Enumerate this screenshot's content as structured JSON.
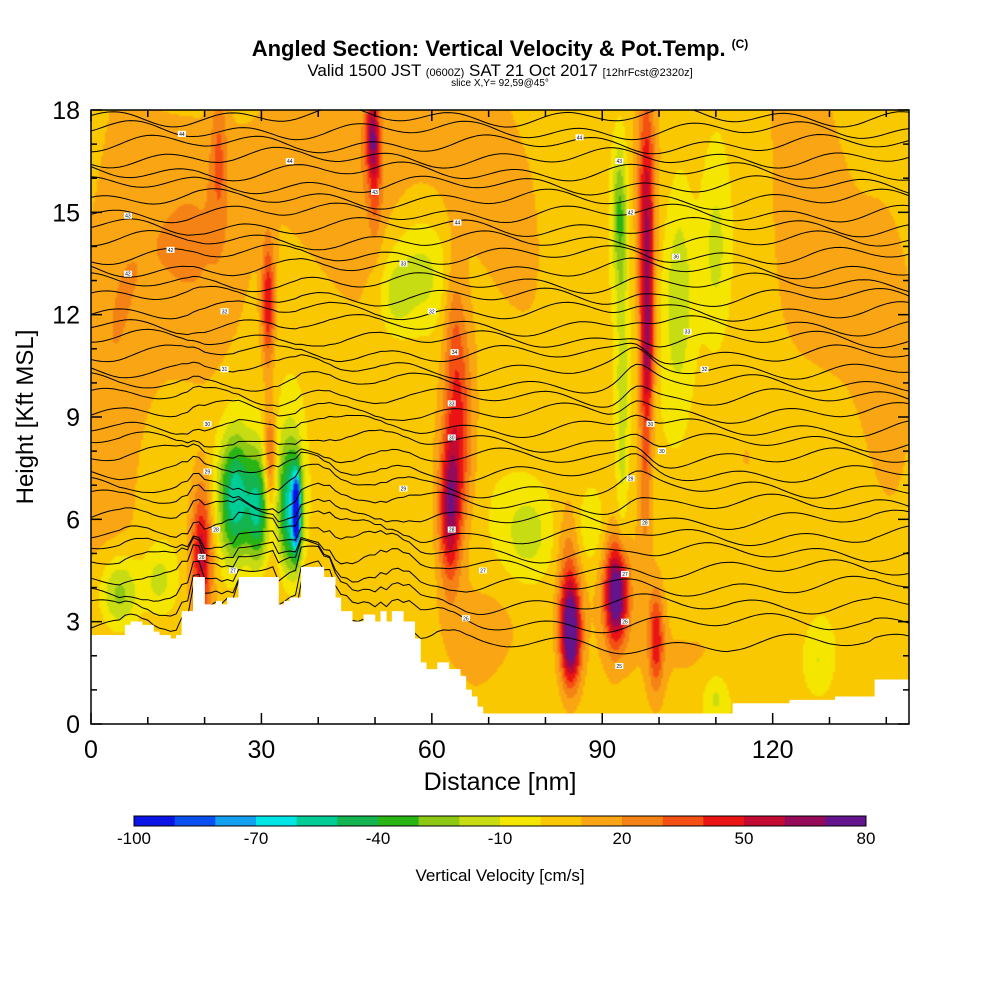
{
  "titles": {
    "main": "Angled Section: Vertical Velocity & Pot.Temp.",
    "mark": "(C)",
    "valid_prefix": "Valid 1500 JST",
    "valid_zulu": "(0600Z)",
    "valid_date": "SAT 21 Oct 2017",
    "forecast": "[12hrFcst@2320z]",
    "slice": "slice X,Y= 92,59@45°"
  },
  "chart_data": {
    "type": "heatmap",
    "title": "Angled Section: Vertical Velocity & Pot.Temp.",
    "xlabel": "Distance [nm]",
    "ylabel": "Height [Kft MSL]",
    "xlim": [
      0,
      144
    ],
    "ylim": [
      0,
      18
    ],
    "x_ticks": [
      0,
      30,
      60,
      90,
      120
    ],
    "y_ticks": [
      0,
      3,
      6,
      9,
      12,
      15,
      18
    ],
    "colorbar": {
      "label": "Vertical Velocity [cm/s]",
      "tick_labels": [
        "-100",
        "-70",
        "-40",
        "-10",
        "20",
        "50",
        "80"
      ],
      "tick_values": [
        -100,
        -70,
        -40,
        -10,
        20,
        50,
        80
      ],
      "bins": [
        -100,
        -90,
        -80,
        -70,
        -60,
        -50,
        -40,
        -30,
        -20,
        -10,
        0,
        10,
        20,
        30,
        40,
        50,
        60,
        70,
        80
      ],
      "colors": [
        "#0a14e6",
        "#0a50f0",
        "#14a0f0",
        "#00e6e6",
        "#00cc96",
        "#14b450",
        "#28b414",
        "#8cc814",
        "#c8dc14",
        "#f5e600",
        "#fac800",
        "#faa514",
        "#f58214",
        "#f55014",
        "#eb1414",
        "#c30a32",
        "#960a5a",
        "#64148c"
      ]
    },
    "background_value": 5,
    "cells": [
      {
        "x": 19.5,
        "y": 5.0,
        "sx": 1.3,
        "sy": 1.4,
        "v": 55
      },
      {
        "x": 25.5,
        "y": 6.6,
        "sx": 2.2,
        "sy": 1.4,
        "v": -62
      },
      {
        "x": 29.5,
        "y": 6.2,
        "sx": 1.3,
        "sy": 1.3,
        "v": -45
      },
      {
        "x": 35.0,
        "y": 6.3,
        "sx": 1.6,
        "sy": 1.5,
        "v": -60
      },
      {
        "x": 36.2,
        "y": 6.2,
        "sx": 0.5,
        "sy": 0.8,
        "v": -82
      },
      {
        "x": 31.2,
        "y": 12.3,
        "sx": 0.8,
        "sy": 1.3,
        "v": 48
      },
      {
        "x": 31.5,
        "y": 7.8,
        "sx": 0.7,
        "sy": 1.0,
        "v": 38
      },
      {
        "x": 22.5,
        "y": 16.8,
        "sx": 1.0,
        "sy": 1.5,
        "v": 25
      },
      {
        "x": 63.2,
        "y": 6.3,
        "sx": 1.3,
        "sy": 1.5,
        "v": 62
      },
      {
        "x": 65.0,
        "y": 8.5,
        "sx": 1.8,
        "sy": 2.0,
        "v": 36
      },
      {
        "x": 64.0,
        "y": 11.5,
        "sx": 1.4,
        "sy": 1.8,
        "v": 25
      },
      {
        "x": 49.5,
        "y": 17.3,
        "sx": 0.8,
        "sy": 0.8,
        "v": 50
      },
      {
        "x": 50.0,
        "y": 16.0,
        "sx": 0.8,
        "sy": 1.2,
        "v": 28
      },
      {
        "x": 84.5,
        "y": 2.6,
        "sx": 1.2,
        "sy": 1.0,
        "v": 82
      },
      {
        "x": 84.0,
        "y": 4.0,
        "sx": 1.3,
        "sy": 1.5,
        "v": 28
      },
      {
        "x": 92.5,
        "y": 3.8,
        "sx": 1.4,
        "sy": 1.0,
        "v": 85
      },
      {
        "x": 97.8,
        "y": 14.3,
        "sx": 1.0,
        "sy": 2.8,
        "v": 58
      },
      {
        "x": 98.0,
        "y": 11.0,
        "sx": 0.8,
        "sy": 1.6,
        "v": 40
      },
      {
        "x": 97.5,
        "y": 7.5,
        "sx": 0.9,
        "sy": 2.0,
        "v": 28
      },
      {
        "x": 99.5,
        "y": 2.5,
        "sx": 0.9,
        "sy": 1.0,
        "v": 45
      },
      {
        "x": 93.5,
        "y": 9.5,
        "sx": 0.7,
        "sy": 3.5,
        "v": -14
      },
      {
        "x": 93.0,
        "y": 15.0,
        "sx": 1.0,
        "sy": 1.5,
        "v": -30
      },
      {
        "x": 103.5,
        "y": 12.8,
        "sx": 2.0,
        "sy": 2.5,
        "v": -18
      },
      {
        "x": 110.0,
        "y": 14.0,
        "sx": 2.0,
        "sy": 2.2,
        "v": -14
      },
      {
        "x": 58.0,
        "y": 13.2,
        "sx": 4.0,
        "sy": 1.2,
        "v": -14
      },
      {
        "x": 53.5,
        "y": 12.5,
        "sx": 2.0,
        "sy": 0.8,
        "v": -11
      },
      {
        "x": 77.0,
        "y": 5.6,
        "sx": 3.0,
        "sy": 0.9,
        "v": -13
      },
      {
        "x": 88.0,
        "y": 5.8,
        "sx": 1.6,
        "sy": 0.8,
        "v": -12
      },
      {
        "x": 5.0,
        "y": 3.8,
        "sx": 2.5,
        "sy": 0.8,
        "v": -30
      },
      {
        "x": 12.0,
        "y": 4.2,
        "sx": 2.0,
        "sy": 0.7,
        "v": -14
      },
      {
        "x": 128.0,
        "y": 1.8,
        "sx": 2.0,
        "sy": 0.8,
        "v": -11
      },
      {
        "x": 110.0,
        "y": 0.8,
        "sx": 1.5,
        "sy": 0.5,
        "v": -11
      },
      {
        "x": 4.0,
        "y": 10.3,
        "sx": 5.0,
        "sy": 5.0,
        "v": 20
      },
      {
        "x": 20.0,
        "y": 14.5,
        "sx": 8.0,
        "sy": 3.0,
        "v": 18
      },
      {
        "x": 48.0,
        "y": 16.0,
        "sx": 8.0,
        "sy": 2.5,
        "v": 18
      },
      {
        "x": 68.0,
        "y": 16.5,
        "sx": 8.0,
        "sy": 2.0,
        "v": 16
      },
      {
        "x": 125.0,
        "y": 14.0,
        "sx": 8.0,
        "sy": 3.0,
        "v": 16
      },
      {
        "x": 140.0,
        "y": 10.5,
        "sx": 3.0,
        "sy": 4.0,
        "v": 14
      },
      {
        "x": 70.0,
        "y": 3.0,
        "sx": 5.0,
        "sy": 1.0,
        "v": 14
      },
      {
        "x": 108.0,
        "y": 2.0,
        "sx": 7.0,
        "sy": 1.0,
        "v": 14
      },
      {
        "x": 32.0,
        "y": 3.8,
        "sx": 5.0,
        "sy": 1.0,
        "v": 14
      }
    ],
    "terrain": [
      [
        0,
        2.6
      ],
      [
        6,
        2.6
      ],
      [
        6,
        2.9
      ],
      [
        7,
        2.9
      ],
      [
        7,
        3.0
      ],
      [
        9,
        3.0
      ],
      [
        9,
        2.9
      ],
      [
        11,
        2.9
      ],
      [
        11,
        2.7
      ],
      [
        12,
        2.7
      ],
      [
        12,
        2.6
      ],
      [
        13,
        2.6
      ],
      [
        13,
        2.6
      ],
      [
        14,
        2.6
      ],
      [
        14,
        2.5
      ],
      [
        15,
        2.5
      ],
      [
        15,
        2.6
      ],
      [
        16,
        2.6
      ],
      [
        16,
        3.3
      ],
      [
        18,
        3.3
      ],
      [
        18,
        4.3
      ],
      [
        20,
        4.3
      ],
      [
        20,
        3.5
      ],
      [
        22,
        3.5
      ],
      [
        22,
        3.6
      ],
      [
        23,
        3.6
      ],
      [
        23,
        3.5
      ],
      [
        24,
        3.5
      ],
      [
        24,
        3.7
      ],
      [
        26,
        3.7
      ],
      [
        26,
        4.3
      ],
      [
        33,
        4.3
      ],
      [
        33,
        3.5
      ],
      [
        34,
        3.5
      ],
      [
        34,
        3.6
      ],
      [
        35,
        3.6
      ],
      [
        35,
        3.7
      ],
      [
        37,
        3.7
      ],
      [
        37,
        4.6
      ],
      [
        41,
        4.6
      ],
      [
        41,
        4.3
      ],
      [
        43,
        4.3
      ],
      [
        43,
        3.7
      ],
      [
        44,
        3.7
      ],
      [
        44,
        3.3
      ],
      [
        46,
        3.3
      ],
      [
        46,
        3.0
      ],
      [
        48,
        3.0
      ],
      [
        48,
        3.2
      ],
      [
        50,
        3.2
      ],
      [
        50,
        3.0
      ],
      [
        51,
        3.0
      ],
      [
        51,
        3.3
      ],
      [
        52,
        3.3
      ],
      [
        52,
        3.0
      ],
      [
        53,
        3.0
      ],
      [
        53,
        3.3
      ],
      [
        55,
        3.3
      ],
      [
        55,
        3.0
      ],
      [
        57,
        3.0
      ],
      [
        57,
        2.5
      ],
      [
        58,
        2.5
      ],
      [
        58,
        1.8
      ],
      [
        59,
        1.8
      ],
      [
        59,
        1.6
      ],
      [
        61,
        1.6
      ],
      [
        61,
        1.8
      ],
      [
        63,
        1.8
      ],
      [
        63,
        1.6
      ],
      [
        65,
        1.6
      ],
      [
        65,
        1.4
      ],
      [
        66,
        1.4
      ],
      [
        66,
        1.0
      ],
      [
        67,
        1.0
      ],
      [
        67,
        0.8
      ],
      [
        68,
        0.8
      ],
      [
        68,
        0.5
      ],
      [
        69,
        0.5
      ],
      [
        69,
        0.3
      ],
      [
        113,
        0.3
      ],
      [
        113,
        0.6
      ],
      [
        123,
        0.6
      ],
      [
        123,
        0.7
      ],
      [
        131,
        0.7
      ],
      [
        131,
        0.8
      ],
      [
        138,
        0.8
      ],
      [
        138,
        1.3
      ],
      [
        144,
        1.3
      ],
      [
        144,
        0
      ]
    ],
    "isentropes": {
      "count": 36,
      "bottom_kft": 2.6,
      "top_kft": 17.8,
      "labels": [
        {
          "x": 16,
          "y": 17.3,
          "text": "44"
        },
        {
          "x": 35,
          "y": 16.5,
          "text": "44"
        },
        {
          "x": 50,
          "y": 15.6,
          "text": "43"
        },
        {
          "x": 86,
          "y": 17.2,
          "text": "44"
        },
        {
          "x": 6.5,
          "y": 14.9,
          "text": "43"
        },
        {
          "x": 14,
          "y": 13.9,
          "text": "42"
        },
        {
          "x": 6.5,
          "y": 13.2,
          "text": "42"
        },
        {
          "x": 23.5,
          "y": 12.1,
          "text": "32"
        },
        {
          "x": 23.5,
          "y": 10.4,
          "text": "31"
        },
        {
          "x": 20.5,
          "y": 8.8,
          "text": "30"
        },
        {
          "x": 20.5,
          "y": 7.4,
          "text": "29"
        },
        {
          "x": 22,
          "y": 5.7,
          "text": "28"
        },
        {
          "x": 19.5,
          "y": 4.9,
          "text": "28"
        },
        {
          "x": 25,
          "y": 4.5,
          "text": "27"
        },
        {
          "x": 55,
          "y": 13.5,
          "text": "33"
        },
        {
          "x": 60,
          "y": 12.1,
          "text": "32"
        },
        {
          "x": 64,
          "y": 10.9,
          "text": "34"
        },
        {
          "x": 63.5,
          "y": 9.4,
          "text": "33"
        },
        {
          "x": 63.5,
          "y": 8.4,
          "text": "30"
        },
        {
          "x": 55,
          "y": 6.9,
          "text": "29"
        },
        {
          "x": 63.5,
          "y": 5.7,
          "text": "28"
        },
        {
          "x": 69,
          "y": 4.5,
          "text": "27"
        },
        {
          "x": 66,
          "y": 3.1,
          "text": "26"
        },
        {
          "x": 64.5,
          "y": 14.7,
          "text": "44"
        },
        {
          "x": 93,
          "y": 16.5,
          "text": "43"
        },
        {
          "x": 95,
          "y": 15.0,
          "text": "42"
        },
        {
          "x": 103,
          "y": 13.7,
          "text": "36"
        },
        {
          "x": 105,
          "y": 11.5,
          "text": "33"
        },
        {
          "x": 108,
          "y": 10.4,
          "text": "32"
        },
        {
          "x": 98.5,
          "y": 8.8,
          "text": "30"
        },
        {
          "x": 100.5,
          "y": 8.0,
          "text": "30"
        },
        {
          "x": 95,
          "y": 7.2,
          "text": "29"
        },
        {
          "x": 97.5,
          "y": 5.9,
          "text": "28"
        },
        {
          "x": 94,
          "y": 4.4,
          "text": "27"
        },
        {
          "x": 94,
          "y": 3.0,
          "text": "26"
        },
        {
          "x": 93,
          "y": 1.7,
          "text": "25"
        }
      ]
    }
  }
}
